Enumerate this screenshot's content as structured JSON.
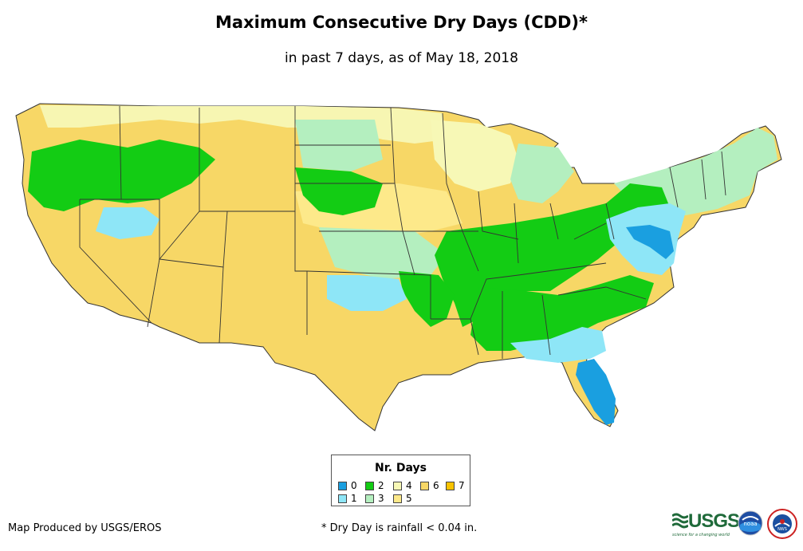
{
  "title": "Maximum Consecutive Dry Days (CDD)*",
  "subtitle": "in past 7 days, as of May 18, 2018",
  "legend": {
    "title": "Nr. Days",
    "items": [
      {
        "label": "0",
        "color": "#1a9fe0"
      },
      {
        "label": "1",
        "color": "#8ee6f7"
      },
      {
        "label": "2",
        "color": "#13cc14"
      },
      {
        "label": "3",
        "color": "#b4efbf"
      },
      {
        "label": "4",
        "color": "#f7f8b6"
      },
      {
        "label": "5",
        "color": "#fde98a"
      },
      {
        "label": "6",
        "color": "#f7d766"
      },
      {
        "label": "7",
        "color": "#f8c300"
      }
    ]
  },
  "credit": "Map Produced by USGS/EROS",
  "footnote": "* Dry Day is rainfall < 0.04 in.",
  "logos": {
    "usgs": "USGS",
    "usgs_tagline": "science for a changing world",
    "noaa": "noaa",
    "nws": "NWS"
  }
}
